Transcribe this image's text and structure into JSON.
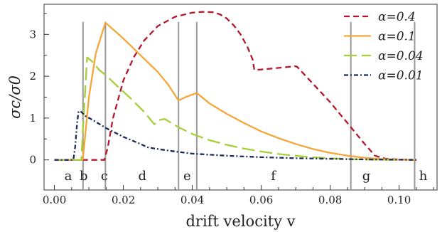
{
  "chart_data": {
    "type": "line",
    "xlabel": "drift velocity v",
    "ylabel": "σc/σ0",
    "xlim": [
      -0.003,
      0.111
    ],
    "ylim": [
      -0.72,
      3.72
    ],
    "x_ticks": [
      0.0,
      0.02,
      0.04,
      0.06,
      0.08,
      0.1
    ],
    "x_tick_labels": [
      "0.00",
      "0.02",
      "0.04",
      "0.06",
      "0.08",
      "0.10"
    ],
    "y_ticks": [
      0,
      1,
      2,
      3
    ],
    "y_tick_labels": [
      "0",
      "1",
      "2",
      "3"
    ],
    "legend_position": "top-right",
    "grid": false,
    "vertical_lines": [
      0.0083,
      0.0148,
      0.036,
      0.0413,
      0.086,
      0.1045
    ],
    "regions": [
      {
        "label": "a",
        "x": 0.004
      },
      {
        "label": "b",
        "x": 0.0085
      },
      {
        "label": "c",
        "x": 0.0145
      },
      {
        "label": "d",
        "x": 0.0255
      },
      {
        "label": "e",
        "x": 0.0385
      },
      {
        "label": "f",
        "x": 0.0635
      },
      {
        "label": "g",
        "x": 0.0905
      },
      {
        "label": "h",
        "x": 0.107
      }
    ],
    "series": [
      {
        "name": "α=0.4",
        "color": "#b2182b",
        "dash": "8,5",
        "x": [
          0.0,
          0.0145,
          0.0155,
          0.017,
          0.02,
          0.023,
          0.026,
          0.03,
          0.035,
          0.04,
          0.043,
          0.046,
          0.048,
          0.05,
          0.052,
          0.054,
          0.056,
          0.0575,
          0.058,
          0.06,
          0.065,
          0.07,
          0.0705,
          0.075,
          0.08,
          0.085,
          0.09,
          0.093,
          0.096,
          0.1,
          0.105
        ],
        "y": [
          0.0,
          0.0,
          0.3,
          1.0,
          1.9,
          2.45,
          2.85,
          3.2,
          3.42,
          3.52,
          3.54,
          3.53,
          3.48,
          3.38,
          3.22,
          3.0,
          2.7,
          2.4,
          2.15,
          2.16,
          2.2,
          2.24,
          2.22,
          1.82,
          1.38,
          0.88,
          0.38,
          0.1,
          0.03,
          0.01,
          0.0
        ]
      },
      {
        "name": "α=0.1",
        "color": "#f4a63a",
        "dash": "",
        "x": [
          0.0,
          0.0082,
          0.0086,
          0.01,
          0.012,
          0.0148,
          0.017,
          0.02,
          0.025,
          0.03,
          0.033,
          0.036,
          0.038,
          0.0413,
          0.045,
          0.05,
          0.055,
          0.06,
          0.065,
          0.07,
          0.075,
          0.08,
          0.085,
          0.09,
          0.095,
          0.1,
          0.105
        ],
        "y": [
          0.0,
          0.0,
          0.3,
          1.5,
          2.55,
          3.28,
          3.12,
          2.9,
          2.5,
          2.1,
          1.8,
          1.42,
          1.5,
          1.6,
          1.35,
          1.1,
          0.88,
          0.68,
          0.52,
          0.38,
          0.26,
          0.17,
          0.1,
          0.05,
          0.02,
          0.005,
          0.0
        ]
      },
      {
        "name": "α=0.04",
        "color": "#a6ce39",
        "dash": "18,7",
        "x": [
          0.0,
          0.0078,
          0.0082,
          0.0095,
          0.011,
          0.013,
          0.015,
          0.018,
          0.022,
          0.026,
          0.029,
          0.0303,
          0.032,
          0.036,
          0.04,
          0.045,
          0.05,
          0.055,
          0.06,
          0.065,
          0.07,
          0.075,
          0.08,
          0.085,
          0.09,
          0.095,
          0.1
        ],
        "y": [
          0.0,
          0.0,
          0.6,
          2.45,
          2.35,
          2.15,
          2.02,
          1.78,
          1.48,
          1.15,
          0.85,
          0.95,
          0.98,
          0.78,
          0.62,
          0.47,
          0.36,
          0.27,
          0.2,
          0.14,
          0.1,
          0.06,
          0.04,
          0.02,
          0.01,
          0.003,
          0.0
        ]
      },
      {
        "name": "α=0.01",
        "color": "#1f2a5c",
        "dash": "6,3,2,3",
        "x": [
          0.0,
          0.0055,
          0.006,
          0.0066,
          0.007,
          0.0075,
          0.009,
          0.011,
          0.013,
          0.015,
          0.02,
          0.025,
          0.027,
          0.03,
          0.035,
          0.04,
          0.05,
          0.06,
          0.07,
          0.08,
          0.09,
          0.1,
          0.105
        ],
        "y": [
          0.0,
          0.0,
          0.3,
          0.9,
          1.15,
          1.17,
          1.05,
          0.96,
          0.86,
          0.76,
          0.55,
          0.38,
          0.3,
          0.26,
          0.2,
          0.15,
          0.1,
          0.065,
          0.04,
          0.025,
          0.012,
          0.005,
          0.0
        ]
      }
    ]
  }
}
